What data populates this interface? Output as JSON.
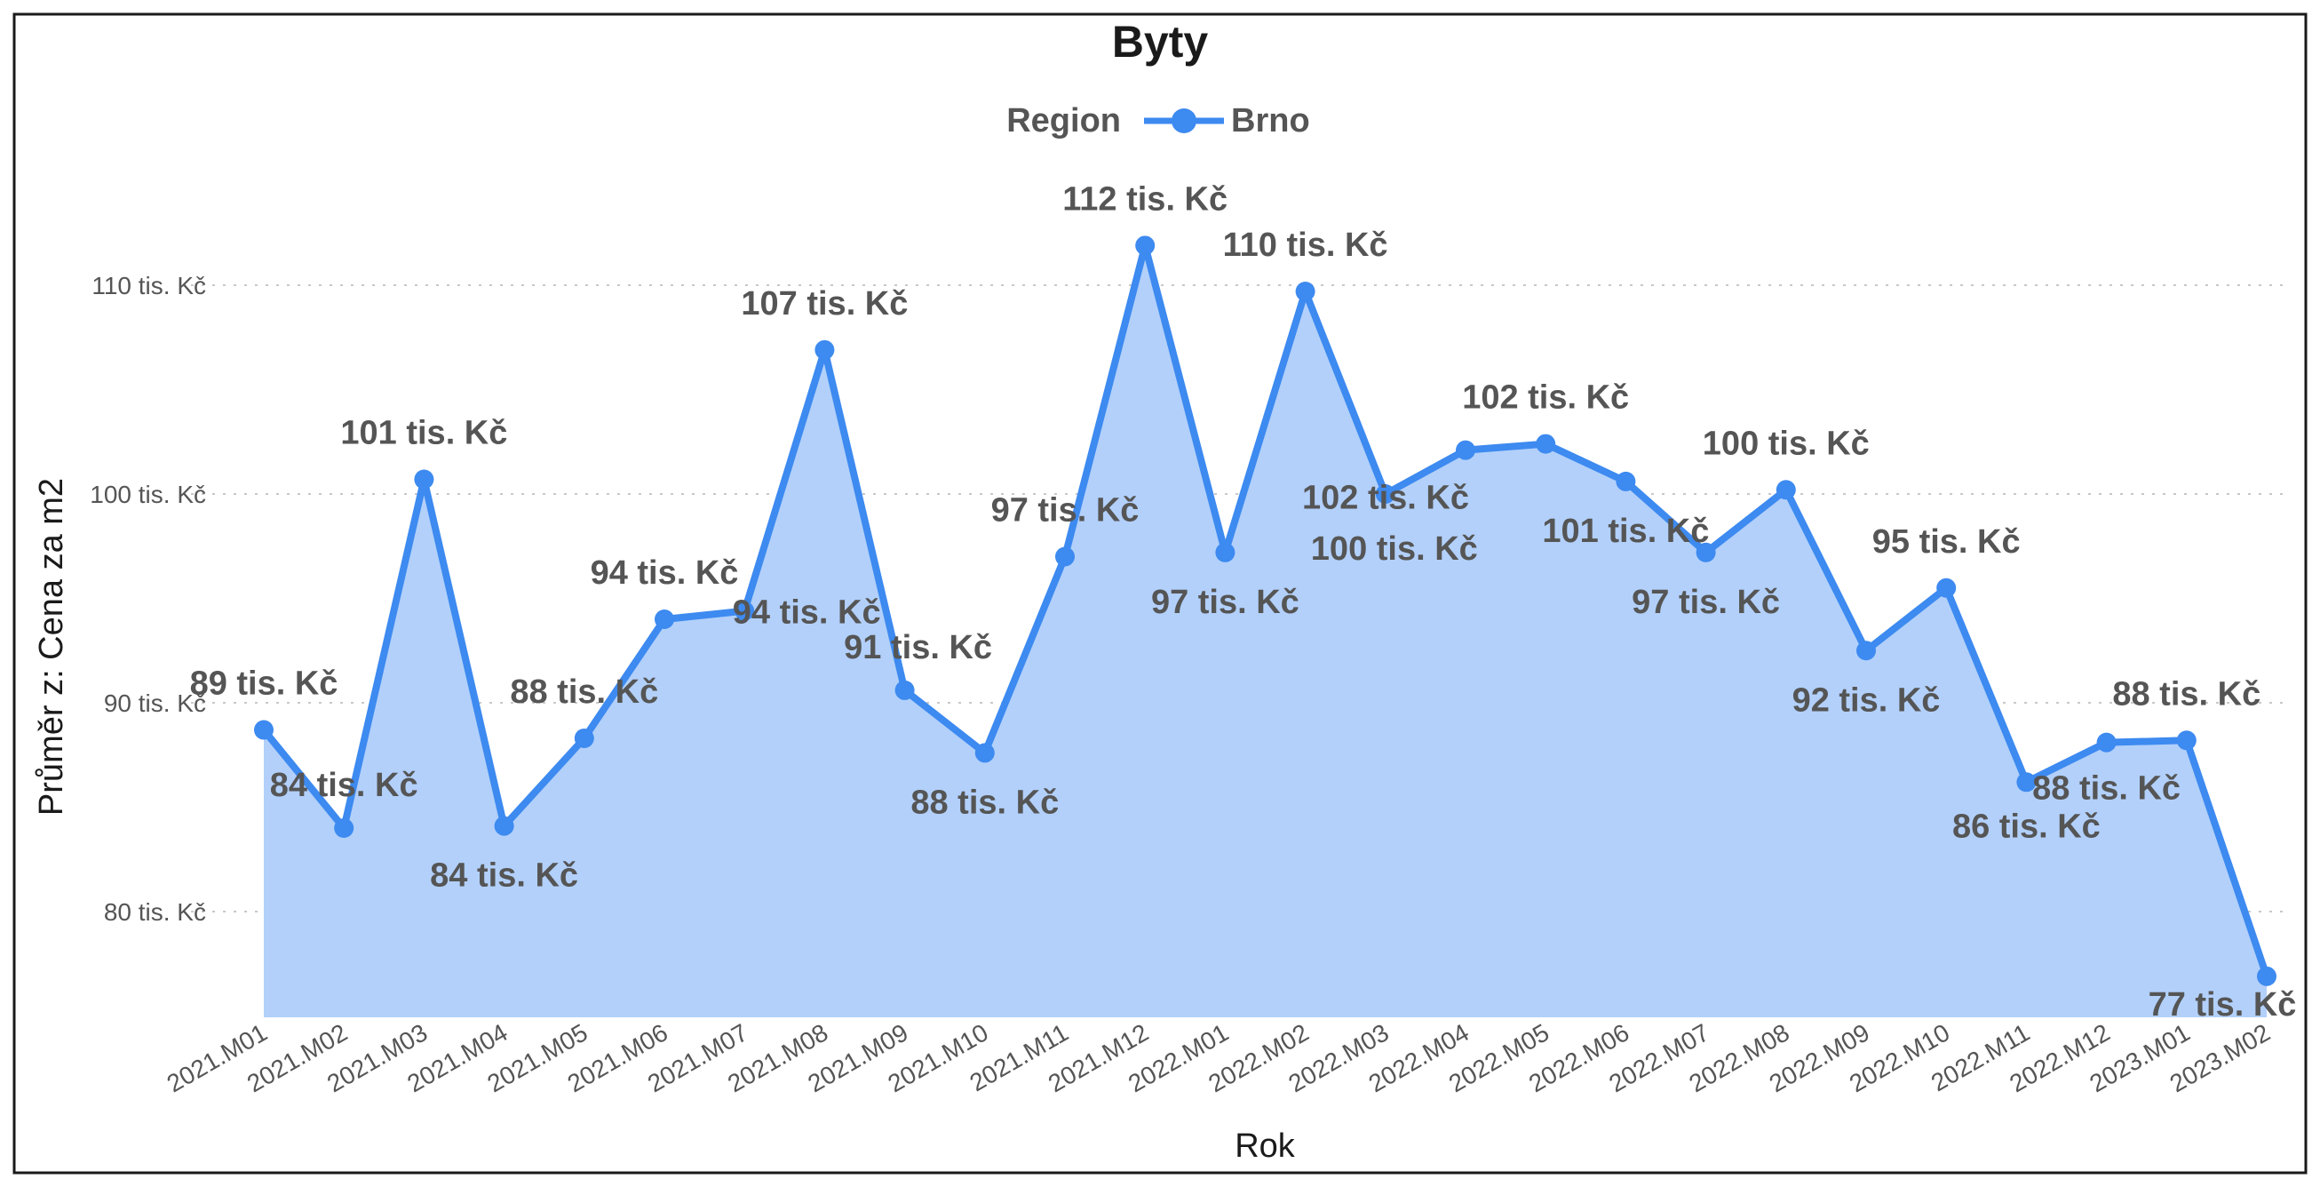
{
  "chart_data": {
    "type": "area",
    "title": "Byty",
    "xlabel": "Rok",
    "ylabel": "Průměr z: Cena za m2",
    "legend": {
      "title": "Region",
      "position": "top-center"
    },
    "series": [
      {
        "name": "Brno",
        "color": "#3d8af0",
        "fill": "#b2d0fa",
        "values": [
          88.7,
          84.0,
          100.7,
          84.1,
          88.3,
          94.0,
          94.4,
          106.9,
          90.6,
          87.6,
          97.0,
          111.9,
          97.2,
          109.7,
          100.0,
          102.1,
          102.4,
          100.6,
          97.2,
          100.2,
          92.5,
          95.5,
          86.2,
          88.1,
          88.2,
          76.9
        ]
      }
    ],
    "categories": [
      "2021.M01",
      "2021.M02",
      "2021.M03",
      "2021.M04",
      "2021.M05",
      "2021.M06",
      "2021.M07",
      "2021.M08",
      "2021.M09",
      "2021.M10",
      "2021.M11",
      "2021.M12",
      "2022.M01",
      "2022.M02",
      "2022.M03",
      "2022.M04",
      "2022.M05",
      "2022.M06",
      "2022.M07",
      "2022.M08",
      "2022.M09",
      "2022.M10",
      "2022.M11",
      "2022.M12",
      "2023.M01",
      "2023.M02"
    ],
    "data_labels": [
      "89 tis. Kč",
      "84 tis. Kč",
      "101 tis. Kč",
      "84 tis. Kč",
      "88 tis. Kč",
      "94 tis. Kč",
      "94 tis. Kč",
      "107 tis. Kč",
      "91 tis. Kč",
      "88 tis. Kč",
      "97 tis. Kč",
      "112 tis. Kč",
      "97 tis. Kč",
      "110 tis. Kč",
      "100 tis. Kč",
      "102 tis. Kč",
      "102 tis. Kč",
      "101 tis. Kč",
      "97 tis. Kč",
      "100 tis. Kč",
      "92 tis. Kč",
      "95 tis. Kč",
      "86 tis. Kč",
      "88 tis. Kč",
      "88 tis. Kč",
      "77 tis. Kč"
    ],
    "y_ticks": [
      80,
      90,
      100,
      110
    ],
    "y_tick_labels": [
      "80 tis. Kč",
      "90 tis. Kč",
      "100 tis. Kč",
      "110 tis. Kč"
    ],
    "ylim": [
      75,
      116
    ],
    "grid": true
  }
}
